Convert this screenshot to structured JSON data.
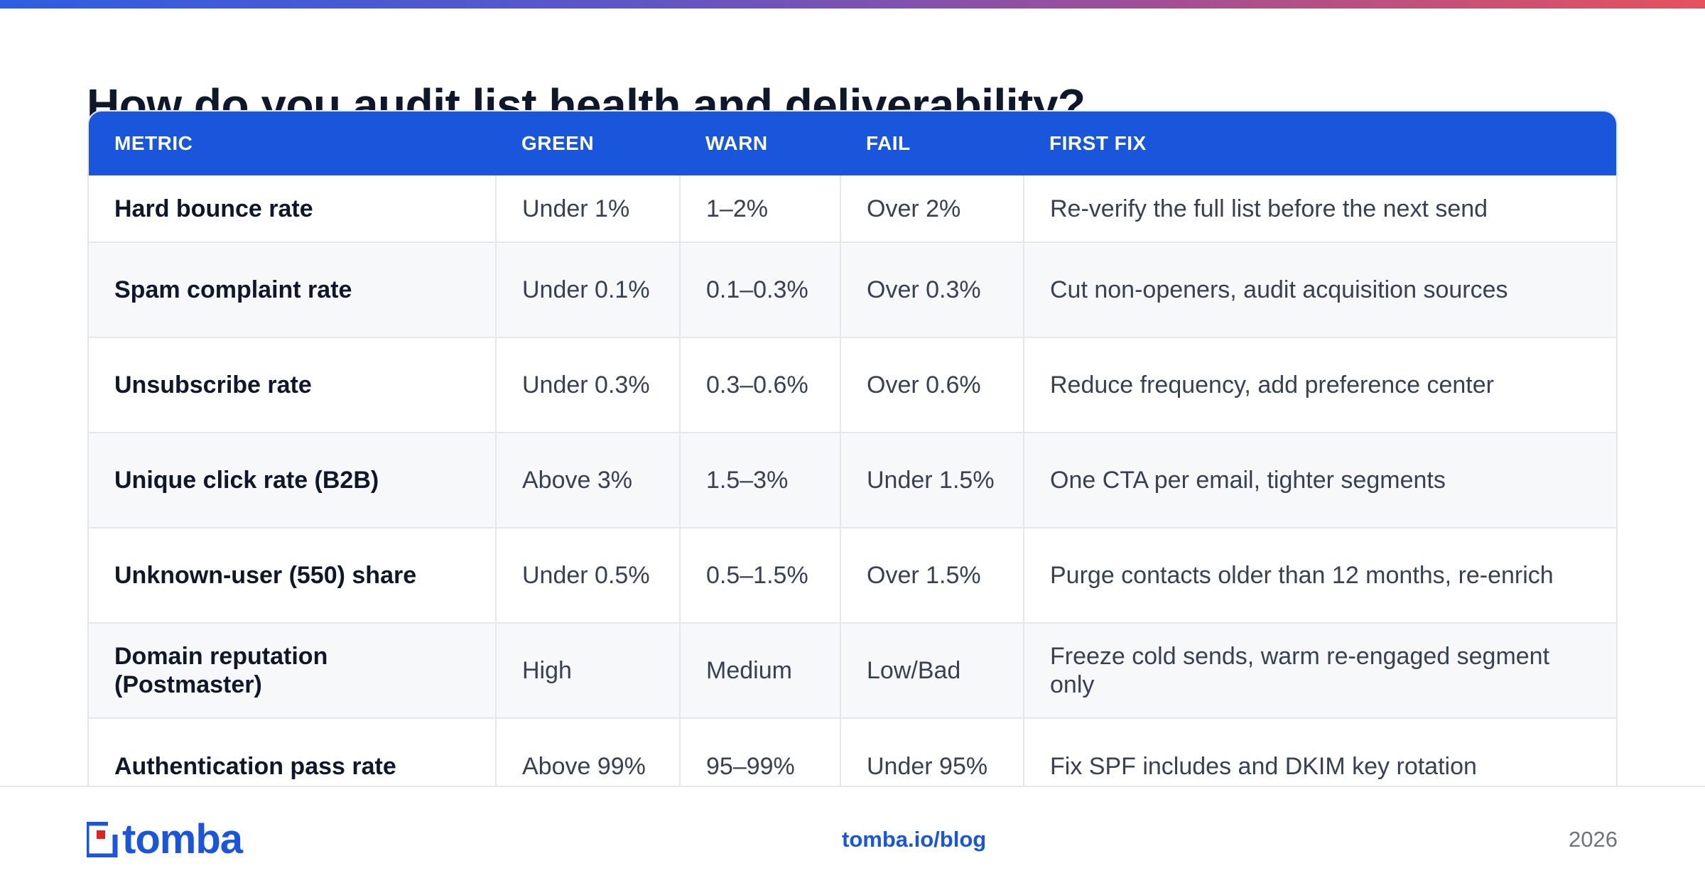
{
  "page": {
    "title": "How do you audit list health and deliverability?",
    "accent_color": "#1a56db"
  },
  "table": {
    "headers": [
      "METRIC",
      "GREEN",
      "WARN",
      "FAIL",
      "FIRST FIX"
    ],
    "rows": [
      [
        "Hard bounce rate",
        "Under 1%",
        "1–2%",
        "Over 2%",
        "Re-verify the full list before the next send"
      ],
      [
        "Spam complaint rate",
        "Under 0.1%",
        "0.1–0.3%",
        "Over 0.3%",
        "Cut non-openers, audit acquisition sources"
      ],
      [
        "Unsubscribe rate",
        "Under 0.3%",
        "0.3–0.6%",
        "Over 0.6%",
        "Reduce frequency, add preference center"
      ],
      [
        "Unique click rate (B2B)",
        "Above 3%",
        "1.5–3%",
        "Under 1.5%",
        "One CTA per email, tighter segments"
      ],
      [
        "Unknown-user (550) share",
        "Under 0.5%",
        "0.5–1.5%",
        "Over 1.5%",
        "Purge contacts older than 12 months, re-enrich"
      ],
      [
        "Domain reputation (Postmaster)",
        "High",
        "Medium",
        "Low/Bad",
        "Freeze cold sends, warm re-engaged segment only"
      ],
      [
        "Authentication pass rate",
        "Above 99%",
        "95–99%",
        "Under 95%",
        "Fix SPF includes and DKIM key rotation"
      ]
    ]
  },
  "footer": {
    "logo_text": "tomba",
    "logo_icon": "tomba-logo-icon",
    "link": "tomba.io/blog",
    "year": "2026"
  }
}
